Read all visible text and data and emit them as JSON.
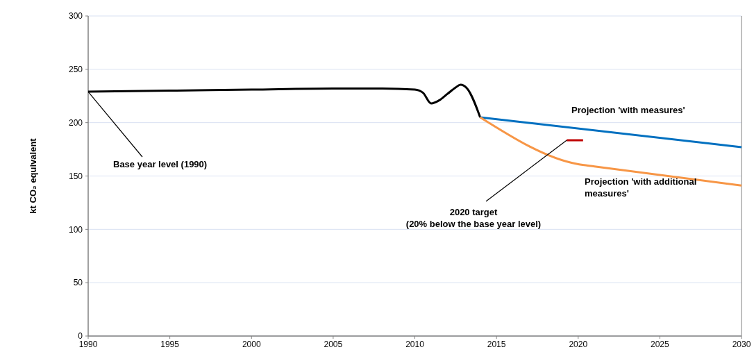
{
  "chart_data": {
    "type": "line",
    "ylabel": "kt CO₂ equivalent",
    "xlim": [
      1990,
      2030
    ],
    "xticks": [
      1990,
      1995,
      2000,
      2005,
      2010,
      2015,
      2020,
      2025,
      2030
    ],
    "ylim": [
      0,
      300
    ],
    "yticks": [
      0,
      50,
      100,
      150,
      200,
      250,
      300
    ],
    "grid": "y",
    "line_style": "solid",
    "marker": "none",
    "series": [
      {
        "color": "#000000",
        "x": [
          1990,
          1995,
          2000,
          2005,
          2008,
          2010,
          2010.5,
          2011,
          2011.5,
          2012,
          2012.5,
          2012.8,
          2013.2,
          2014
        ],
        "values": [
          229,
          230,
          231,
          232,
          232,
          231,
          228,
          218,
          221,
          227,
          233,
          235.5,
          232,
          205
        ]
      },
      {
        "color": "#0070c0",
        "x": [
          2014,
          2030
        ],
        "values": [
          205,
          177
        ]
      },
      {
        "color": "#f79646",
        "x": [
          2014,
          2020,
          2021,
          2030
        ],
        "values": [
          205,
          161,
          159,
          141
        ]
      },
      {
        "color": "#c00000",
        "x": [
          2019.3,
          2020.3
        ],
        "values": [
          183.5,
          183.5
        ]
      }
    ],
    "annotations": [
      {
        "text": "Base year level (1990)",
        "x": 1990,
        "y": 229
      },
      {
        "text": "2020 target\n(20% below the base year level)",
        "x": 2019.3,
        "y": 183.5
      },
      "Projection 'with measures'",
      "Projection 'with additional\nmeasures'"
    ]
  }
}
